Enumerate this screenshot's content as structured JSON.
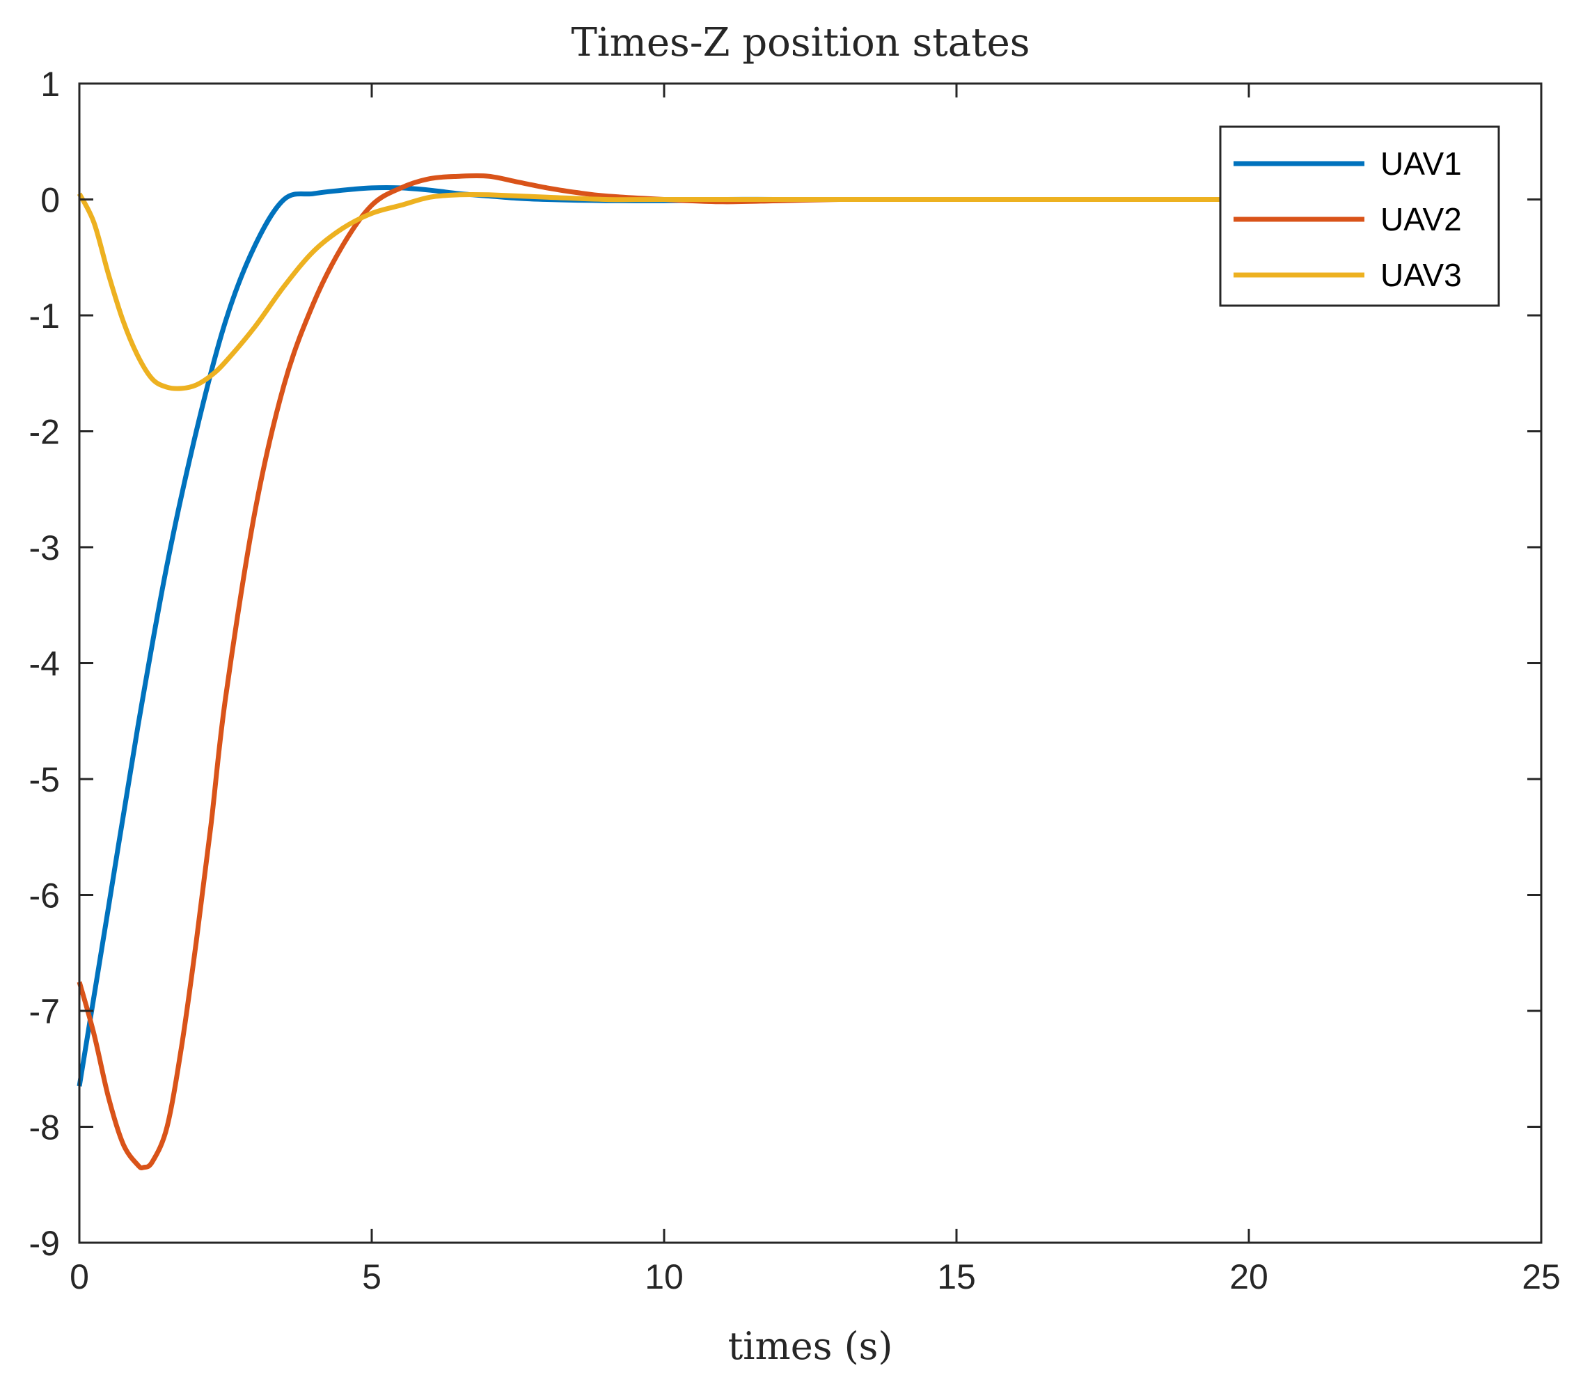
{
  "chart_data": {
    "type": "line",
    "title": "Times-Z position states",
    "xlabel": "times (s)",
    "ylabel": "",
    "xlim": [
      0,
      25
    ],
    "ylim": [
      -9,
      1
    ],
    "xticks": [
      0,
      5,
      10,
      15,
      20,
      25
    ],
    "yticks": [
      1,
      0,
      -1,
      -2,
      -3,
      -4,
      -5,
      -6,
      -7,
      -8,
      -9
    ],
    "xtick_labels": [
      "0",
      "5",
      "10",
      "15",
      "20",
      "25"
    ],
    "ytick_labels": [
      "1",
      "0",
      "-1",
      "-2",
      "-3",
      "-4",
      "-5",
      "-6",
      "-7",
      "-8",
      "-9"
    ],
    "grid": false,
    "legend_position": "top-right",
    "series": [
      {
        "name": "UAV1",
        "color": "#0072BD",
        "x": [
          0,
          0.5,
          1,
          1.5,
          2,
          2.5,
          3,
          3.5,
          4,
          4.5,
          5,
          5.5,
          6,
          6.5,
          7,
          7.5,
          8,
          9,
          10,
          11,
          12,
          13.5
        ],
        "y": [
          -7.65,
          -6.1,
          -4.55,
          -3.15,
          -2.0,
          -1.05,
          -0.4,
          0.0,
          0.05,
          0.08,
          0.1,
          0.1,
          0.08,
          0.05,
          0.03,
          0.01,
          0.0,
          -0.01,
          -0.01,
          0.0,
          0.0,
          0.0
        ]
      },
      {
        "name": "UAV2",
        "color": "#D95319",
        "x": [
          0,
          0.25,
          0.5,
          0.75,
          1.0,
          1.1,
          1.25,
          1.5,
          1.75,
          2.0,
          2.25,
          2.5,
          3.0,
          3.5,
          4.0,
          4.5,
          5.0,
          5.5,
          6.0,
          6.5,
          7.0,
          7.5,
          8.0,
          8.5,
          9.0,
          10.0,
          11.0,
          12.0,
          13.0
        ],
        "y": [
          -6.75,
          -7.2,
          -7.75,
          -8.15,
          -8.33,
          -8.35,
          -8.3,
          -8.0,
          -7.3,
          -6.4,
          -5.4,
          -4.3,
          -2.7,
          -1.6,
          -0.9,
          -0.4,
          -0.05,
          0.1,
          0.18,
          0.2,
          0.2,
          0.15,
          0.1,
          0.06,
          0.03,
          0.0,
          -0.02,
          -0.01,
          0.0
        ]
      },
      {
        "name": "UAV3",
        "color": "#EDB120",
        "x": [
          0,
          0.25,
          0.5,
          0.75,
          1.0,
          1.25,
          1.5,
          1.75,
          2.0,
          2.25,
          2.5,
          3.0,
          3.5,
          4.0,
          4.5,
          5.0,
          5.5,
          6.0,
          6.5,
          7.0,
          8.0,
          9.0,
          10.0,
          12.0,
          15.0,
          20.0
        ],
        "y": [
          0.05,
          -0.2,
          -0.65,
          -1.05,
          -1.35,
          -1.55,
          -1.62,
          -1.63,
          -1.6,
          -1.52,
          -1.4,
          -1.1,
          -0.75,
          -0.45,
          -0.25,
          -0.12,
          -0.05,
          0.02,
          0.04,
          0.04,
          0.02,
          0.0,
          0.0,
          0.0,
          0.0,
          0.0
        ]
      }
    ]
  }
}
